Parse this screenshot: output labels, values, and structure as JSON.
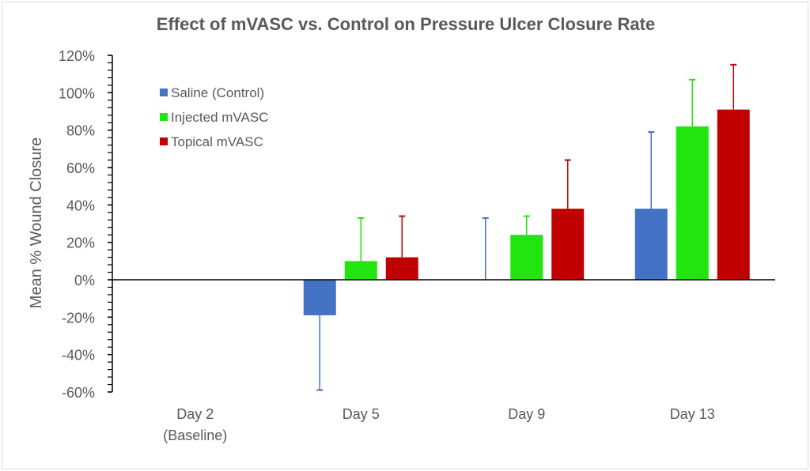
{
  "chart_data": {
    "type": "bar",
    "title": "Effect of mVASC vs. Control on Pressure Ulcer Closure Rate",
    "xlabel": "",
    "ylabel": "Mean % Wound Closure",
    "ylim": [
      -60,
      120
    ],
    "yticks": [
      120,
      100,
      80,
      60,
      40,
      20,
      0,
      -20,
      -40,
      -60
    ],
    "ytick_labels": [
      "120%",
      "100%",
      "80%",
      "60%",
      "40%",
      "20%",
      "0%",
      "-20%",
      "-40%",
      "-60%"
    ],
    "categories": [
      {
        "line1": "Day 2",
        "line2": "(Baseline)"
      },
      {
        "line1": "Day 5",
        "line2": ""
      },
      {
        "line1": "Day 9",
        "line2": ""
      },
      {
        "line1": "Day 13",
        "line2": ""
      }
    ],
    "legend_position": "top-left",
    "series": [
      {
        "name": "Saline (Control)",
        "color": "#4472c4",
        "values": [
          0,
          -19,
          0,
          38
        ],
        "error_ends": [
          null,
          -59,
          33,
          79
        ]
      },
      {
        "name": "Injected mVASC",
        "color": "#22e40e",
        "values": [
          0,
          10,
          24,
          82
        ],
        "error_ends": [
          null,
          33,
          34,
          107
        ]
      },
      {
        "name": "Topical mVASC",
        "color": "#c00000",
        "values": [
          0,
          12,
          38,
          91
        ],
        "error_ends": [
          null,
          34,
          64,
          115
        ]
      }
    ]
  }
}
